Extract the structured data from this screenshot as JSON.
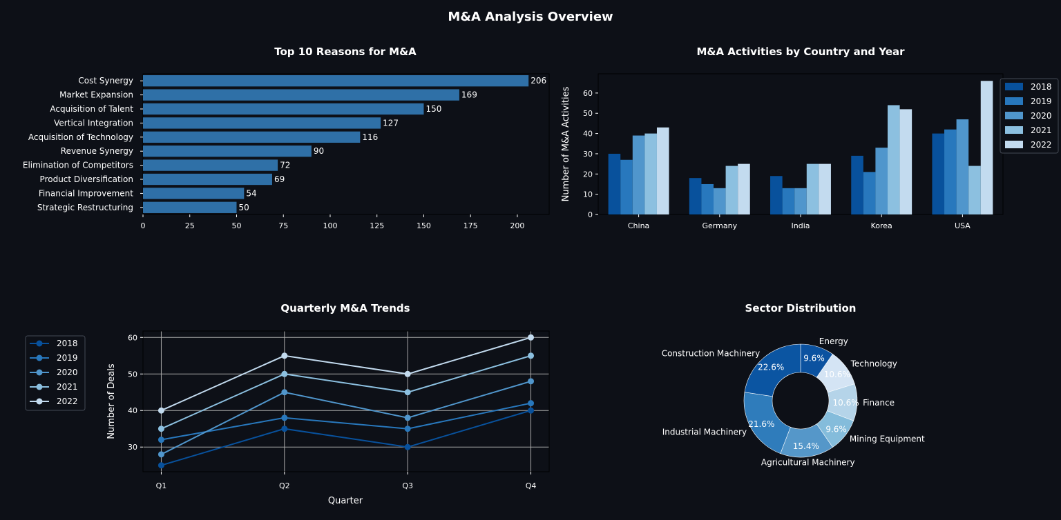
{
  "figure_title": "M&A Analysis Overview",
  "colors": {
    "background": "#0d1017",
    "text": "#ffffff",
    "grid": "#aaaaaa",
    "palette": [
      "#08519c",
      "#2878bd",
      "#5096cc",
      "#8cc0e0",
      "#c3dbef"
    ],
    "bar_single": "#2f70a7"
  },
  "chart_data": [
    {
      "type": "bar",
      "orientation": "horizontal",
      "title": "Top 10 Reasons for M&A",
      "categories": [
        "Cost Synergy",
        "Market Expansion",
        "Acquisition of Talent",
        "Vertical Integration",
        "Acquisition of Technology",
        "Revenue Synergy",
        "Elimination of Competitors",
        "Product Diversification",
        "Financial Improvement",
        "Strategic Restructuring"
      ],
      "values": [
        206,
        169,
        150,
        127,
        116,
        90,
        72,
        69,
        54,
        50
      ],
      "xticks": [
        0,
        25,
        50,
        75,
        100,
        125,
        150,
        175,
        200
      ],
      "xlim": [
        0,
        217
      ],
      "data_labels": true
    },
    {
      "type": "bar",
      "orientation": "vertical",
      "title": "M&A Activities by Country and Year",
      "ylabel": "Number of M&A Activities",
      "categories": [
        "China",
        "Germany",
        "India",
        "Korea",
        "USA"
      ],
      "series": [
        {
          "name": "2018",
          "values": [
            30,
            18,
            19,
            29,
            40
          ]
        },
        {
          "name": "2019",
          "values": [
            27,
            15,
            13,
            21,
            42
          ]
        },
        {
          "name": "2020",
          "values": [
            39,
            13,
            13,
            33,
            47
          ]
        },
        {
          "name": "2021",
          "values": [
            40,
            24,
            25,
            54,
            24
          ]
        },
        {
          "name": "2022",
          "values": [
            43,
            25,
            25,
            52,
            66
          ]
        }
      ],
      "yticks": [
        0,
        10,
        20,
        30,
        40,
        50,
        60
      ],
      "ylim": [
        0,
        69.5
      ],
      "legend": "upper-right-outside"
    },
    {
      "type": "line",
      "title": "Quarterly M&A Trends",
      "xlabel": "Quarter",
      "ylabel": "Number of Deals",
      "x": [
        "Q1",
        "Q2",
        "Q3",
        "Q4"
      ],
      "series": [
        {
          "name": "2018",
          "values": [
            25,
            35,
            30,
            40
          ]
        },
        {
          "name": "2019",
          "values": [
            32,
            38,
            35,
            42
          ]
        },
        {
          "name": "2020",
          "values": [
            28,
            45,
            38,
            48
          ]
        },
        {
          "name": "2021",
          "values": [
            35,
            50,
            45,
            55
          ]
        },
        {
          "name": "2022",
          "values": [
            40,
            55,
            50,
            60
          ]
        }
      ],
      "yticks": [
        30,
        40,
        50,
        60
      ],
      "ylim": [
        23.25,
        61.75
      ],
      "grid": true,
      "legend": "left-outside"
    },
    {
      "type": "pie",
      "style": "donut",
      "title": "Sector Distribution",
      "slices": [
        {
          "label": "Energy",
          "value": 9.6,
          "pct": "9.6%"
        },
        {
          "label": "Technology",
          "value": 10.6,
          "pct": "10.6%"
        },
        {
          "label": "Finance",
          "value": 10.6,
          "pct": "10.6%"
        },
        {
          "label": "Mining Equipment",
          "value": 9.6,
          "pct": "9.6%"
        },
        {
          "label": "Agricultural Machinery",
          "value": 15.4,
          "pct": "15.4%"
        },
        {
          "label": "Industrial Machinery",
          "value": 21.6,
          "pct": "21.6%"
        },
        {
          "label": "Construction Machinery",
          "value": 22.6,
          "pct": "22.6%"
        }
      ],
      "slice_colors": [
        "#0b52a0",
        "#d4e4f4",
        "#b5d4e9",
        "#84bcdb",
        "#5597c9",
        "#2f7cbb",
        "#0b55a2"
      ],
      "start_angle_deg": 90,
      "direction": "clockwise"
    }
  ]
}
